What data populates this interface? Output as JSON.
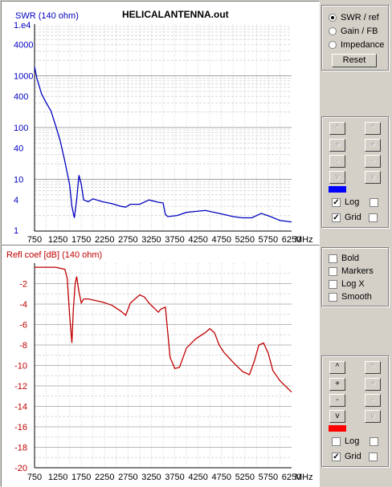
{
  "window_title": "HELICALANTENNA.out",
  "colors": {
    "swr_line": "#0000c0",
    "refl_line": "#c00000",
    "swr_label": "#0000c0",
    "refl_label": "#c00000"
  },
  "top_chart": {
    "ylabel": "SWR (140 ohm)",
    "ytick_labels": [
      "1.e4",
      "4000",
      "1000",
      "400",
      "100",
      "40",
      "10",
      "4",
      "1"
    ],
    "xtick_labels": [
      "750",
      "1250",
      "1750",
      "2250",
      "2750",
      "3250",
      "3750",
      "4250",
      "4750",
      "5250",
      "5750",
      "6250"
    ],
    "x_unit": "MHz"
  },
  "bottom_chart": {
    "ylabel": "Refl coef [dB] (140 ohm)",
    "ytick_labels": [
      "-2",
      "-4",
      "-6",
      "-8",
      "-10",
      "-12",
      "-14",
      "-16",
      "-18",
      "-20"
    ],
    "xtick_labels": [
      "750",
      "1250",
      "1750",
      "2250",
      "2750",
      "3250",
      "3750",
      "4250",
      "4750",
      "5250",
      "5750",
      "6250"
    ],
    "x_unit": "MHz"
  },
  "chart_data": [
    {
      "type": "line",
      "ylabel": "SWR (140 ohm)",
      "x_unit": "MHz",
      "log_y": true,
      "xlim": [
        750,
        6250
      ],
      "ylim": [
        1,
        10000
      ],
      "grid": true,
      "series": [
        {
          "x": [
            750,
            800,
            900,
            1000,
            1100,
            1200,
            1300,
            1400,
            1500,
            1550,
            1600,
            1650,
            1700,
            1750,
            1800,
            1900,
            2000,
            2200,
            2400,
            2600,
            2700,
            2800,
            3000,
            3200,
            3400,
            3500,
            3550,
            3600,
            3800,
            4000,
            4200,
            4400,
            4600,
            4800,
            5000,
            5200,
            5400,
            5600,
            5800,
            6000,
            6250
          ],
          "y": [
            1500,
            900,
            450,
            300,
            210,
            110,
            55,
            22,
            8,
            3,
            1.8,
            4,
            12,
            8,
            4,
            3.7,
            4.2,
            3.7,
            3.4,
            3.0,
            2.9,
            3.3,
            3.3,
            4.0,
            3.6,
            3.5,
            2.1,
            1.9,
            2.0,
            2.3,
            2.4,
            2.5,
            2.3,
            2.1,
            1.9,
            1.8,
            1.8,
            2.2,
            1.9,
            1.6,
            1.5
          ]
        }
      ]
    },
    {
      "type": "line",
      "ylabel": "Refl coef [dB] (140 ohm)",
      "x_unit": "MHz",
      "xlim": [
        750,
        6250
      ],
      "ylim": [
        -20,
        0
      ],
      "grid": true,
      "series": [
        {
          "x": [
            750,
            900,
            1050,
            1200,
            1300,
            1400,
            1450,
            1500,
            1550,
            1580,
            1620,
            1650,
            1700,
            1750,
            1800,
            1900,
            2000,
            2200,
            2400,
            2600,
            2700,
            2800,
            3000,
            3100,
            3200,
            3400,
            3450,
            3500,
            3550,
            3650,
            3750,
            3850,
            4000,
            4200,
            4400,
            4500,
            4600,
            4700,
            4800,
            5000,
            5200,
            5350,
            5450,
            5550,
            5650,
            5750,
            5850,
            6000,
            6250
          ],
          "y": [
            -0.4,
            -0.4,
            -0.4,
            -0.4,
            -0.5,
            -0.6,
            -1.5,
            -5,
            -7.8,
            -4.5,
            -2,
            -1.3,
            -2.8,
            -3.9,
            -3.5,
            -3.5,
            -3.6,
            -3.8,
            -4.1,
            -4.7,
            -5.1,
            -3.9,
            -3.1,
            -3.3,
            -3.9,
            -4.8,
            -4.5,
            -4.4,
            -4.3,
            -9.2,
            -10.3,
            -10.2,
            -8.3,
            -7.4,
            -6.8,
            -6.4,
            -6.8,
            -8.0,
            -8.7,
            -9.7,
            -10.6,
            -10.9,
            -9.6,
            -8.0,
            -7.8,
            -8.8,
            -10.5,
            -11.5,
            -12.6
          ]
        }
      ]
    }
  ],
  "display_mode": {
    "options": [
      "SWR / ref",
      "Gain / FB",
      "Impedance"
    ],
    "selected": "SWR / ref",
    "reset_label": "Reset"
  },
  "top_controls": {
    "scroll_buttons": [
      "^",
      "+",
      "-",
      "v"
    ],
    "log_label": "Log",
    "grid_label": "Grid",
    "log_checked": true,
    "grid_checked": true,
    "swatch_color": "#0000ff"
  },
  "options": {
    "bold_label": "Bold",
    "markers_label": "Markers",
    "logx_label": "Log X",
    "smooth_label": "Smooth"
  },
  "bottom_controls": {
    "scroll_buttons": [
      "^",
      "+",
      "-",
      "v"
    ],
    "log_label": "Log",
    "grid_label": "Grid",
    "log_checked": false,
    "grid_checked": true,
    "swatch_color": "#ff0000"
  }
}
